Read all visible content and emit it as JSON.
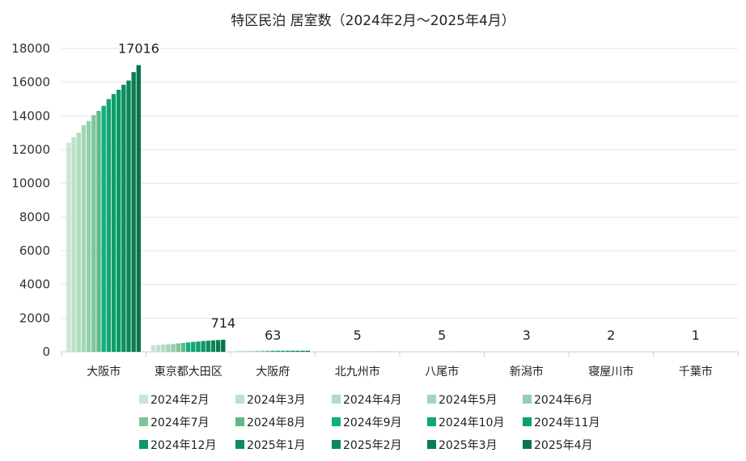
{
  "chart_data": {
    "type": "bar",
    "title": "特区民泊 居室数（2024年2月～2025年4月）",
    "xlabel": "",
    "ylabel": "",
    "ylim": [
      0,
      18000
    ],
    "yticks": [
      0,
      2000,
      4000,
      6000,
      8000,
      10000,
      12000,
      14000,
      16000,
      18000
    ],
    "grid": true,
    "legend_position": "bottom",
    "categories": [
      "大阪市",
      "東京都大田区",
      "大阪府",
      "北九州市",
      "八尾市",
      "新潟市",
      "寝屋川市",
      "千葉市"
    ],
    "series": [
      {
        "name": "2024年2月",
        "color": "#c7e6d3",
        "values": [
          12400,
          390,
          63,
          5,
          5,
          3,
          2,
          1
        ]
      },
      {
        "name": "2024年3月",
        "color": "#bde1cc",
        "values": [
          12750,
          410,
          63,
          5,
          5,
          3,
          2,
          1
        ]
      },
      {
        "name": "2024年4月",
        "color": "#b0dcc2",
        "values": [
          13000,
          430,
          63,
          5,
          5,
          3,
          2,
          1
        ]
      },
      {
        "name": "2024年5月",
        "color": "#a3d6b8",
        "values": [
          13450,
          450,
          63,
          5,
          5,
          3,
          2,
          1
        ]
      },
      {
        "name": "2024年6月",
        "color": "#93cfab",
        "values": [
          13700,
          470,
          63,
          5,
          5,
          3,
          2,
          1
        ]
      },
      {
        "name": "2024年7月",
        "color": "#7fc59c",
        "values": [
          14050,
          500,
          63,
          5,
          5,
          3,
          2,
          1
        ]
      },
      {
        "name": "2024年8月",
        "color": "#5fb889",
        "values": [
          14300,
          530,
          63,
          5,
          5,
          3,
          2,
          1
        ]
      },
      {
        "name": "2024年9月",
        "color": "#14ae7c",
        "values": [
          14600,
          560,
          63,
          5,
          5,
          3,
          2,
          1
        ]
      },
      {
        "name": "2024年10月",
        "color": "#0fa672",
        "values": [
          15000,
          590,
          63,
          5,
          5,
          3,
          2,
          1
        ]
      },
      {
        "name": "2024年11月",
        "color": "#0da06c",
        "values": [
          15300,
          610,
          63,
          5,
          5,
          3,
          2,
          1
        ]
      },
      {
        "name": "2024年12月",
        "color": "#0c9866",
        "values": [
          15550,
          640,
          63,
          5,
          5,
          3,
          2,
          1
        ]
      },
      {
        "name": "2025年1月",
        "color": "#0b8f5f",
        "values": [
          15850,
          660,
          63,
          5,
          5,
          3,
          2,
          1
        ]
      },
      {
        "name": "2025年2月",
        "color": "#0a8657",
        "values": [
          16100,
          680,
          63,
          5,
          5,
          3,
          2,
          1
        ]
      },
      {
        "name": "2025年3月",
        "color": "#097d51",
        "values": [
          16600,
          700,
          63,
          5,
          5,
          3,
          2,
          1
        ]
      },
      {
        "name": "2025年4月",
        "color": "#08744b",
        "values": [
          17016,
          714,
          63,
          5,
          5,
          3,
          2,
          1
        ]
      }
    ],
    "data_labels": [
      "17016",
      "714",
      "63",
      "5",
      "5",
      "3",
      "2",
      "1"
    ]
  }
}
